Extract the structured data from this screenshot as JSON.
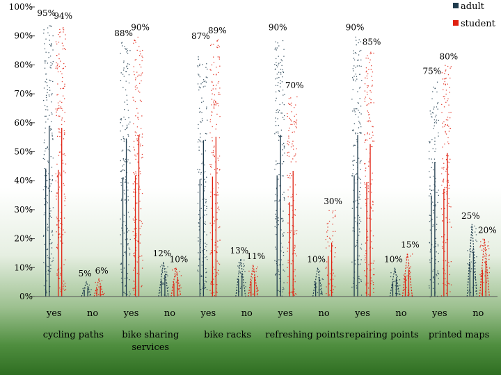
{
  "chart_data": {
    "type": "bar",
    "groups": [
      {
        "name": "cycling paths",
        "categories": [
          "yes",
          "no"
        ]
      },
      {
        "name": "bike sharing services",
        "categories": [
          "yes",
          "no"
        ]
      },
      {
        "name": "bike racks",
        "categories": [
          "yes",
          "no"
        ]
      },
      {
        "name": "refreshing points",
        "categories": [
          "yes",
          "no"
        ]
      },
      {
        "name": "repairing points",
        "categories": [
          "yes",
          "no"
        ]
      },
      {
        "name": "printed maps",
        "categories": [
          "yes",
          "no"
        ]
      }
    ],
    "series": [
      {
        "name": "adult",
        "color": "#1f3b4d",
        "values": [
          95,
          5,
          88,
          12,
          87,
          13,
          90,
          10,
          90,
          10,
          75,
          25
        ],
        "labels": [
          "95%",
          "5%",
          "88%",
          "12%",
          "87%",
          "13%",
          "90%",
          "10%",
          "90%",
          "10%",
          "75%",
          "25%"
        ]
      },
      {
        "name": "student",
        "color": "#e02010",
        "values": [
          94,
          6,
          90,
          10,
          89,
          11,
          70,
          30,
          85,
          15,
          80,
          20
        ],
        "labels": [
          "94%",
          "6%",
          "90%",
          "10%",
          "89%",
          "11%",
          "70%",
          "30%",
          "85%",
          "15%",
          "80%",
          "20%"
        ]
      }
    ],
    "yticks": [
      "0%",
      "10%",
      "20%",
      "30%",
      "40%",
      "50%",
      "60%",
      "70%",
      "80%",
      "90%",
      "100%"
    ],
    "ylim": [
      0,
      100
    ],
    "legend": "top-right",
    "grid": false
  }
}
